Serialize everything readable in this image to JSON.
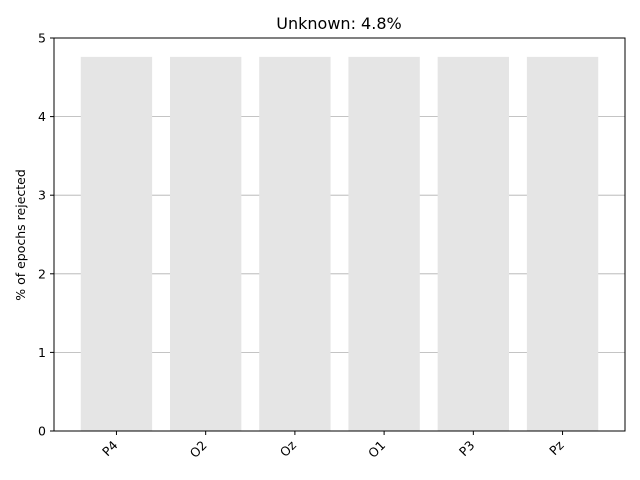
{
  "chart_data": {
    "type": "bar",
    "title": "Unknown: 4.8%",
    "xlabel": "",
    "ylabel": "% of epochs rejected",
    "categories": [
      "P4",
      "O2",
      "Oz",
      "O1",
      "P3",
      "Pz"
    ],
    "values": [
      4.76,
      4.76,
      4.76,
      4.76,
      4.76,
      4.76
    ],
    "ylim": [
      0,
      5
    ],
    "yticks": [
      0,
      1,
      2,
      3,
      4,
      5
    ],
    "grid": "y",
    "bar_color": "#e5e5e5",
    "grid_color": "#b0b0b0"
  }
}
